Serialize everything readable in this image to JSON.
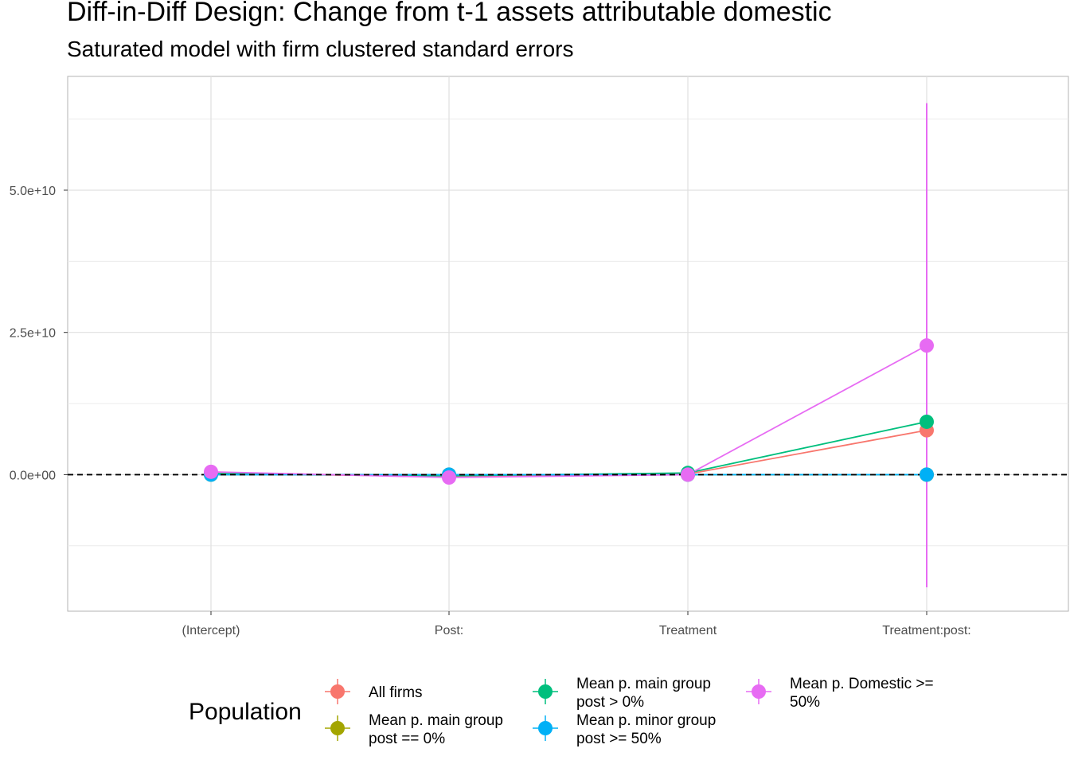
{
  "chart_data": {
    "type": "scatter",
    "title": "Diff-in-Diff Design: Change from t-1 assets attributable domestic",
    "subtitle": "Saturated model with firm clustered standard errors",
    "xlabel": "",
    "ylabel": "",
    "categories": [
      "(Intercept)",
      "Post:",
      "Treatment",
      "Treatment:post:"
    ],
    "ylim": [
      -24000000000.0,
      70000000000.0
    ],
    "y_ticks": [
      0,
      25000000000.0,
      50000000000.0
    ],
    "y_tick_labels": [
      "0.0e+00",
      "2.5e+10",
      "5.0e+10"
    ],
    "reference_line": 0,
    "grid": true,
    "legend": {
      "title": "Population",
      "position": "bottom"
    },
    "series": [
      {
        "name": "All firms",
        "color": "#F8766D",
        "values": [
          200000000.0,
          -300000000.0,
          100000000.0,
          7800000000.0
        ],
        "lower": [
          200000000.0,
          -300000000.0,
          100000000.0,
          7800000000.0
        ],
        "upper": [
          200000000.0,
          -300000000.0,
          100000000.0,
          7800000000.0
        ]
      },
      {
        "name": "Mean p. main group post == 0%",
        "color": "#A3A500",
        "values": [
          0,
          0,
          0,
          0
        ],
        "lower": [
          0,
          0,
          0,
          0
        ],
        "upper": [
          0,
          0,
          0,
          0
        ]
      },
      {
        "name": "Mean p. main group post > 0%",
        "color": "#00BF7D",
        "values": [
          200000000.0,
          -200000000.0,
          300000000.0,
          9300000000.0
        ],
        "lower": [
          200000000.0,
          -200000000.0,
          300000000.0,
          9300000000.0
        ],
        "upper": [
          200000000.0,
          -200000000.0,
          300000000.0,
          9300000000.0
        ]
      },
      {
        "name": "Mean p. minor group post >= 50%",
        "color": "#00B0F6",
        "values": [
          0,
          0,
          0,
          0
        ],
        "lower": [
          0,
          0,
          0,
          0
        ],
        "upper": [
          0,
          0,
          0,
          0
        ]
      },
      {
        "name": "Mean p. Domestic >= 50%",
        "color": "#E76BF3",
        "values": [
          500000000.0,
          -500000000.0,
          0,
          22700000000.0
        ],
        "lower": [
          500000000.0,
          -500000000.0,
          0,
          -19800000000.0
        ],
        "upper": [
          500000000.0,
          -500000000.0,
          0,
          65300000000.0
        ]
      }
    ]
  },
  "legend_items": [
    {
      "lines": [
        "All firms"
      ]
    },
    {
      "lines": [
        "Mean p. main group",
        "post == 0%"
      ]
    },
    {
      "lines": [
        "Mean p. main group",
        "post > 0%"
      ]
    },
    {
      "lines": [
        "Mean p. minor group",
        "post >= 50%"
      ]
    },
    {
      "lines": [
        "Mean p. Domestic >=",
        "50%"
      ]
    }
  ]
}
